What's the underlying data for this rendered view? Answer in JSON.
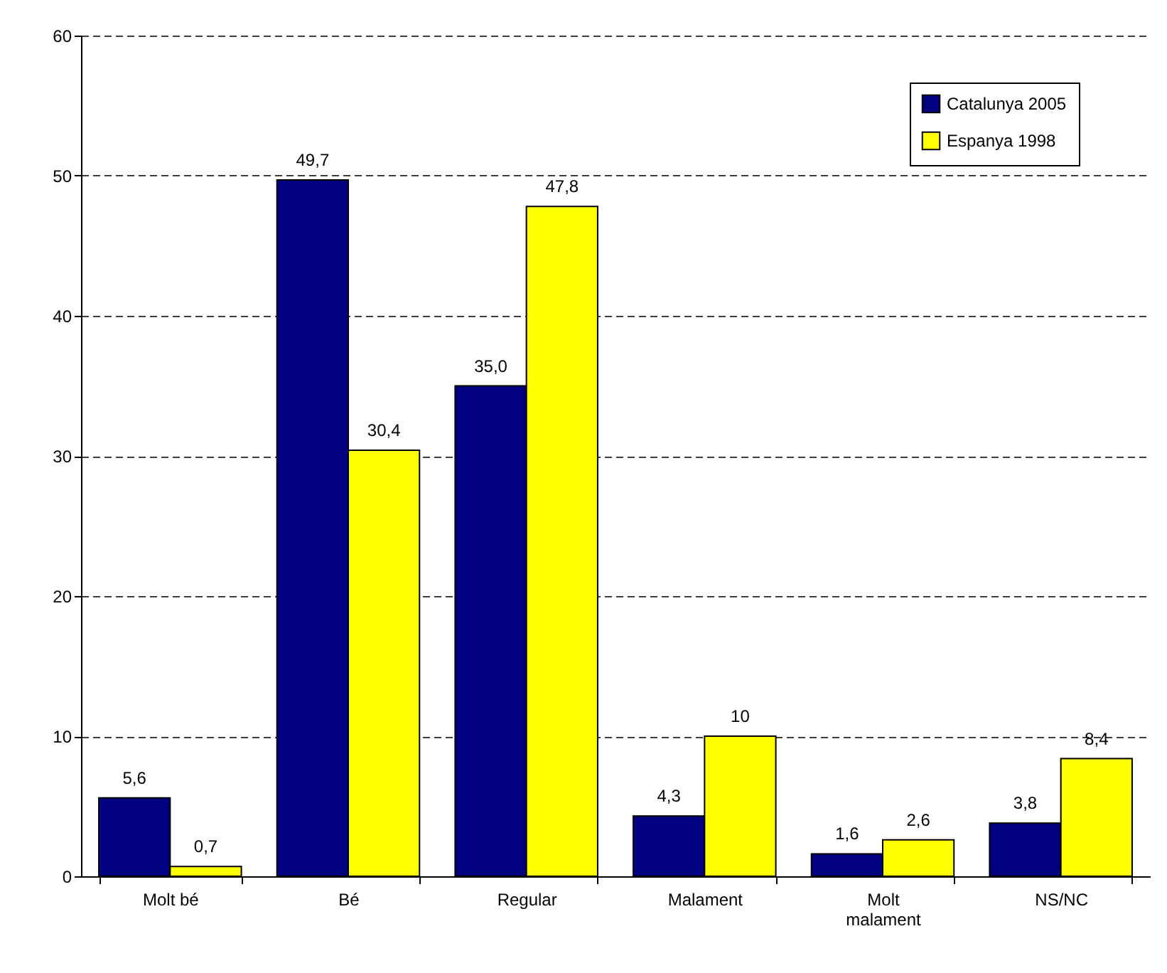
{
  "chart_data": {
    "type": "bar",
    "categories": [
      "Molt bé",
      "Bé",
      "Regular",
      "Malament",
      "Molt malament",
      "NS/NC"
    ],
    "series": [
      {
        "name": "Catalunya 2005",
        "color": "#000080",
        "values": [
          5.6,
          49.7,
          35.0,
          4.3,
          1.6,
          3.8
        ],
        "value_labels": [
          "5,6",
          "49,7",
          "35,0",
          "4,3",
          "1,6",
          "3,8"
        ]
      },
      {
        "name": "Espanya 1998",
        "color": "#ffff00",
        "values": [
          0.7,
          30.4,
          47.8,
          10,
          2.6,
          8.4
        ],
        "value_labels": [
          "0,7",
          "30,4",
          "47,8",
          "10",
          "2,6",
          "8,4"
        ]
      }
    ],
    "ylim": [
      0,
      60
    ],
    "yticks": [
      0,
      10,
      20,
      30,
      40,
      50,
      60
    ],
    "grid": "y",
    "legend": "top right"
  }
}
